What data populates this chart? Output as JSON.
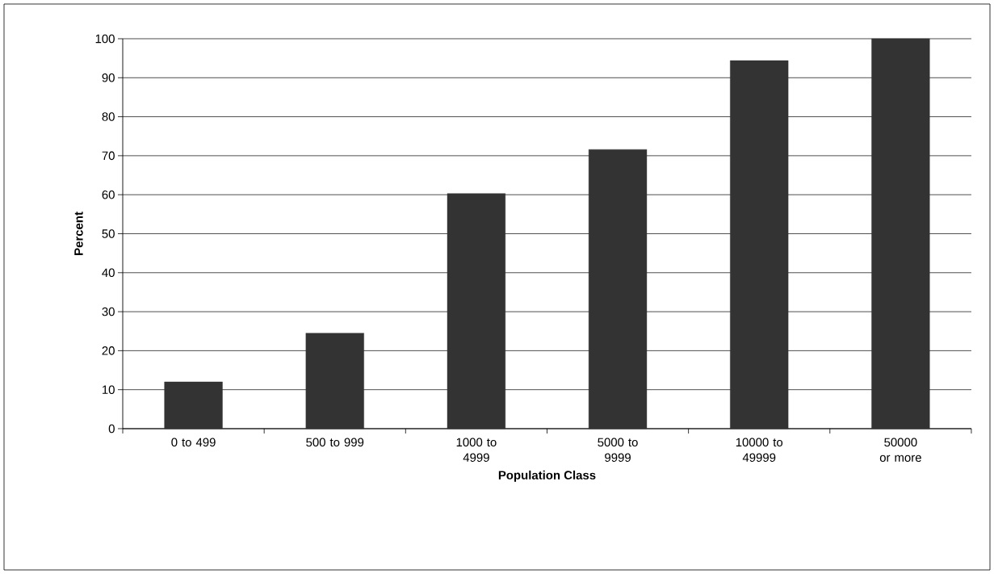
{
  "chart_data": {
    "type": "bar",
    "xlabel": "Population Class",
    "ylabel": "Percent",
    "categories": [
      "0 to 499",
      "500 to 999",
      "1000 to 4999",
      "5000 to 9999",
      "10000 to 49999",
      "50000 or more"
    ],
    "values": [
      12,
      24.5,
      60.3,
      71.6,
      94.4,
      100
    ],
    "color": "#333333",
    "ylim": [
      0,
      100
    ],
    "yticks": [
      0,
      10,
      20,
      30,
      40,
      50,
      60,
      70,
      80,
      90,
      100
    ],
    "grid": "y"
  }
}
